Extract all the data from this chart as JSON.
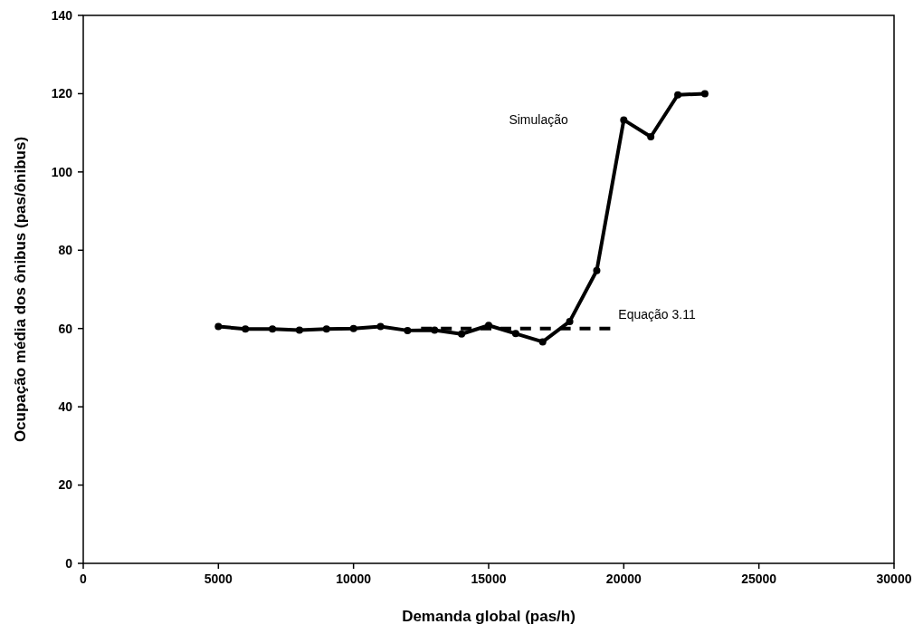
{
  "chart_data": {
    "type": "line",
    "xlabel": "Demanda global (pas/h)",
    "ylabel": "Ocupação média dos ônibus (pas/ônibus)",
    "xlim": [
      0,
      30000
    ],
    "xticks": [
      0,
      5000,
      10000,
      15000,
      20000,
      25000,
      30000
    ],
    "ylim": [
      0,
      140
    ],
    "yticks": [
      0,
      20,
      40,
      60,
      80,
      100,
      120,
      140
    ],
    "grid": false,
    "series": [
      {
        "color": "#000000",
        "marker": "circle",
        "line_style": "solid",
        "x": [
          5000,
          6000,
          7000,
          8000,
          9000,
          10000,
          11000,
          12000,
          13000,
          14000,
          15000,
          16000,
          17000,
          18000,
          19000,
          20000,
          21000,
          22000,
          23000
        ],
        "values": [
          60.5,
          59.9,
          59.9,
          59.6,
          59.9,
          60,
          60.5,
          59.5,
          59.6,
          58.6,
          60.8,
          58.7,
          56.6,
          61.8,
          74.8,
          113.3,
          109,
          119.7,
          120
        ]
      },
      {
        "color": "#000000",
        "marker": "none",
        "line_style": "dashed",
        "x": [
          12500,
          19500
        ],
        "values": [
          60,
          60
        ]
      }
    ],
    "annotations": [
      "Simulação",
      "Equação 3.11"
    ]
  }
}
